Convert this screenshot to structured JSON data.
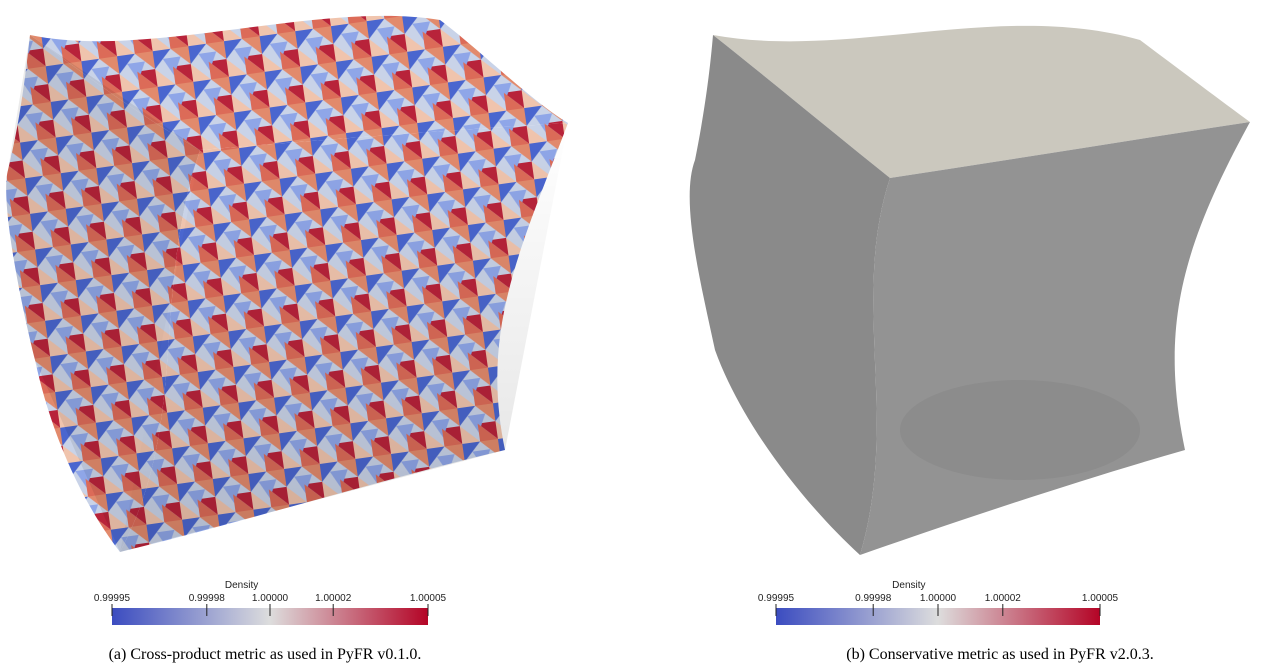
{
  "panels": [
    {
      "colorbar": {
        "title": "Density",
        "lim": [
          0.99995,
          1.00005
        ],
        "ticks": [
          0.99995,
          0.99998,
          {
            "value": 1,
            "label": "1.00000"
          },
          1.00002,
          1.00005
        ]
      },
      "caption": "(a) Cross-product metric as used in PyFR v0.1.0."
    },
    {
      "colorbar": {
        "title": "Density",
        "lim": [
          0.99995,
          1.00005
        ],
        "ticks": [
          0.99995,
          0.99998,
          {
            "value": 1,
            "label": "1.00000"
          },
          1.00002,
          1.00005
        ]
      },
      "caption": "(b) Conservative metric as used in PyFR v2.0.3."
    }
  ]
}
